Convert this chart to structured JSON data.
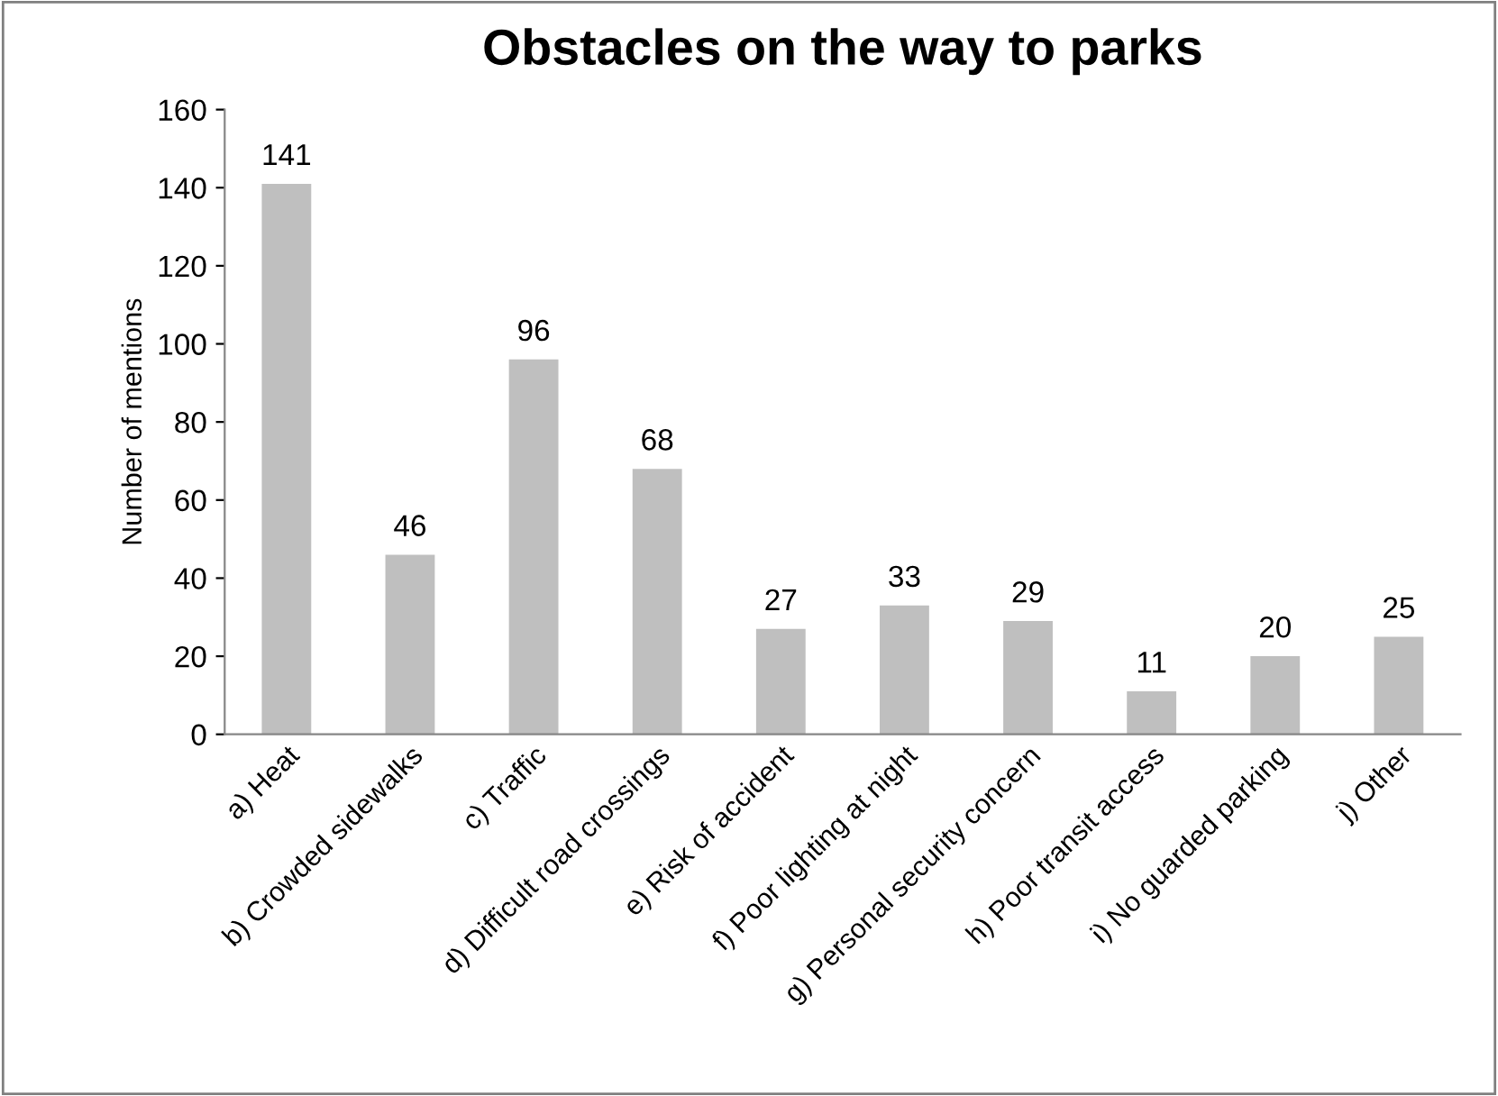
{
  "chart_data": {
    "type": "bar",
    "title": "Obstacles on the way to parks",
    "ylabel": "Number of mentions",
    "categories": [
      "a) Heat",
      "b) Crowded sidewalks",
      "c) Traffic",
      "d) Difficult road crossings",
      "e) Risk of accident",
      "f) Poor lighting at night",
      "g) Personal security concern",
      "h) Poor transit access",
      "i) No guarded parking",
      "j) Other"
    ],
    "values": [
      141,
      46,
      96,
      68,
      27,
      33,
      29,
      11,
      20,
      25
    ],
    "color": "#bfbfbf",
    "ylim": [
      0,
      160
    ],
    "yticks": [
      0,
      20,
      40,
      60,
      80,
      100,
      120,
      140,
      160
    ],
    "grid": false,
    "data_labels": true
  }
}
